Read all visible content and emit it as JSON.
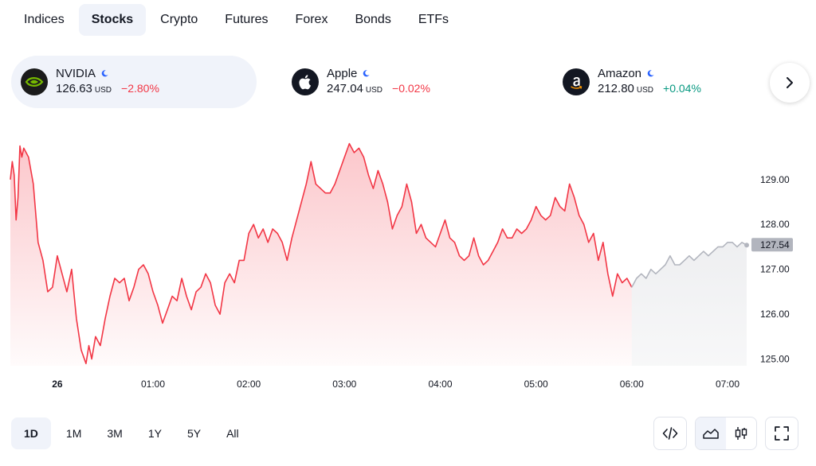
{
  "tabs": [
    {
      "label": "Indices",
      "active": false
    },
    {
      "label": "Stocks",
      "active": true
    },
    {
      "label": "Crypto",
      "active": false
    },
    {
      "label": "Futures",
      "active": false
    },
    {
      "label": "Forex",
      "active": false
    },
    {
      "label": "Bonds",
      "active": false
    },
    {
      "label": "ETFs",
      "active": false
    }
  ],
  "tickers": [
    {
      "name": "NVIDIA",
      "price": "126.63",
      "currency": "USD",
      "change": "−2.80%",
      "direction": "down",
      "logo": "nvidia-logo",
      "active": true
    },
    {
      "name": "Apple",
      "price": "247.04",
      "currency": "USD",
      "change": "−0.02%",
      "direction": "down",
      "logo": "apple-logo",
      "active": false
    },
    {
      "name": "Amazon",
      "price": "212.80",
      "currency": "USD",
      "change": "+0.04%",
      "direction": "up",
      "logo": "amazon-logo",
      "active": false
    }
  ],
  "icons": {
    "market_status": "moon-icon",
    "next": "chevron-right-icon",
    "embed": "code-icon",
    "area_chart": "area-chart-icon",
    "candles": "candlestick-icon",
    "fullscreen": "fullscreen-icon"
  },
  "colors": {
    "line": "#f23645",
    "fill": "#f23645",
    "after_hours_line": "#b2b5be",
    "negative": "#f23645",
    "positive": "#089981",
    "market_status": "#2962ff"
  },
  "chart_data": {
    "type": "area",
    "symbol": "NVIDIA",
    "x_ticks": [
      "26",
      "01:00",
      "02:00",
      "03:00",
      "04:00",
      "05:00",
      "06:00",
      "07:00"
    ],
    "x_tick_hours": [
      0,
      1,
      2,
      3,
      4,
      5,
      6,
      7
    ],
    "y_ticks": [
      129.0,
      128.0,
      127.0,
      126.0,
      125.0
    ],
    "ylim": [
      124.85,
      129.9
    ],
    "xlim": [
      -0.49,
      7.2
    ],
    "last_price_label": "127.54",
    "last_price": 127.54,
    "session_split_hour": 6.0,
    "series": [
      {
        "session": "regular",
        "hours": [
          -0.49,
          -0.47,
          -0.45,
          -0.43,
          -0.41,
          -0.39,
          -0.37,
          -0.35,
          -0.3,
          -0.25,
          -0.2,
          -0.15,
          -0.1,
          -0.05,
          0.0,
          0.05,
          0.1,
          0.15,
          0.2,
          0.25,
          0.3,
          0.33,
          0.36,
          0.4,
          0.45,
          0.5,
          0.55,
          0.6,
          0.65,
          0.7,
          0.75,
          0.8,
          0.85,
          0.9,
          0.95,
          1.0,
          1.05,
          1.1,
          1.15,
          1.2,
          1.25,
          1.3,
          1.35,
          1.4,
          1.45,
          1.5,
          1.55,
          1.6,
          1.65,
          1.7,
          1.75,
          1.8,
          1.85,
          1.9,
          1.95,
          2.0,
          2.05,
          2.1,
          2.15,
          2.2,
          2.25,
          2.3,
          2.35,
          2.4,
          2.45,
          2.5,
          2.55,
          2.6,
          2.65,
          2.7,
          2.75,
          2.8,
          2.85,
          2.9,
          2.95,
          3.0,
          3.05,
          3.1,
          3.15,
          3.2,
          3.25,
          3.3,
          3.35,
          3.4,
          3.45,
          3.5,
          3.55,
          3.6,
          3.65,
          3.7,
          3.75,
          3.8,
          3.85,
          3.9,
          3.95,
          4.0,
          4.05,
          4.1,
          4.15,
          4.2,
          4.25,
          4.3,
          4.35,
          4.4,
          4.45,
          4.5,
          4.55,
          4.6,
          4.65,
          4.7,
          4.75,
          4.8,
          4.85,
          4.9,
          4.95,
          5.0,
          5.05,
          5.1,
          5.15,
          5.2,
          5.25,
          5.3,
          5.35,
          5.4,
          5.45,
          5.5,
          5.55,
          5.6,
          5.65,
          5.7,
          5.75,
          5.8,
          5.85,
          5.9,
          5.95,
          6.0
        ],
        "values": [
          129.0,
          129.4,
          129.1,
          128.1,
          128.6,
          129.75,
          129.5,
          129.7,
          129.5,
          128.9,
          127.6,
          127.2,
          126.5,
          126.6,
          127.3,
          126.9,
          126.5,
          127.0,
          125.9,
          125.2,
          124.9,
          125.3,
          125.0,
          125.5,
          125.3,
          125.9,
          126.4,
          126.8,
          126.7,
          126.8,
          126.3,
          126.6,
          127.0,
          127.1,
          126.9,
          126.5,
          126.2,
          125.8,
          126.1,
          126.4,
          126.3,
          126.8,
          126.4,
          126.1,
          126.5,
          126.6,
          126.9,
          126.7,
          126.2,
          126.0,
          126.7,
          126.9,
          126.7,
          127.2,
          127.2,
          127.8,
          128.0,
          127.7,
          127.9,
          127.6,
          127.9,
          127.8,
          127.6,
          127.2,
          127.7,
          128.1,
          128.5,
          128.9,
          129.4,
          128.9,
          128.8,
          128.7,
          128.7,
          128.9,
          129.2,
          129.5,
          129.8,
          129.6,
          129.7,
          129.5,
          129.1,
          128.8,
          129.2,
          128.9,
          128.5,
          127.9,
          128.2,
          128.4,
          128.9,
          128.5,
          127.8,
          128.0,
          127.7,
          127.6,
          127.5,
          127.8,
          128.1,
          127.7,
          127.6,
          127.3,
          127.2,
          127.3,
          127.7,
          127.3,
          127.1,
          127.2,
          127.4,
          127.6,
          127.9,
          127.7,
          127.7,
          127.9,
          127.8,
          127.9,
          128.1,
          128.4,
          128.2,
          128.1,
          128.2,
          128.6,
          128.4,
          128.3,
          128.9,
          128.6,
          128.2,
          128.0,
          127.6,
          127.8,
          127.2,
          127.6,
          126.9,
          126.4,
          126.9,
          126.7,
          126.8,
          126.6
        ],
        "color": "#f23645"
      },
      {
        "session": "extended",
        "hours": [
          6.0,
          6.05,
          6.1,
          6.15,
          6.2,
          6.25,
          6.3,
          6.35,
          6.4,
          6.45,
          6.5,
          6.55,
          6.6,
          6.65,
          6.7,
          6.75,
          6.8,
          6.85,
          6.9,
          6.95,
          7.0,
          7.05,
          7.1,
          7.15,
          7.2
        ],
        "values": [
          126.6,
          126.8,
          126.9,
          126.8,
          127.0,
          126.9,
          127.0,
          127.1,
          127.3,
          127.1,
          127.1,
          127.2,
          127.3,
          127.2,
          127.3,
          127.4,
          127.3,
          127.4,
          127.5,
          127.5,
          127.6,
          127.6,
          127.5,
          127.6,
          127.54
        ],
        "color": "#b2b5be"
      }
    ]
  },
  "periods": [
    {
      "label": "1D",
      "active": true
    },
    {
      "label": "1M",
      "active": false
    },
    {
      "label": "3M",
      "active": false
    },
    {
      "label": "1Y",
      "active": false
    },
    {
      "label": "5Y",
      "active": false
    },
    {
      "label": "All",
      "active": false
    }
  ]
}
